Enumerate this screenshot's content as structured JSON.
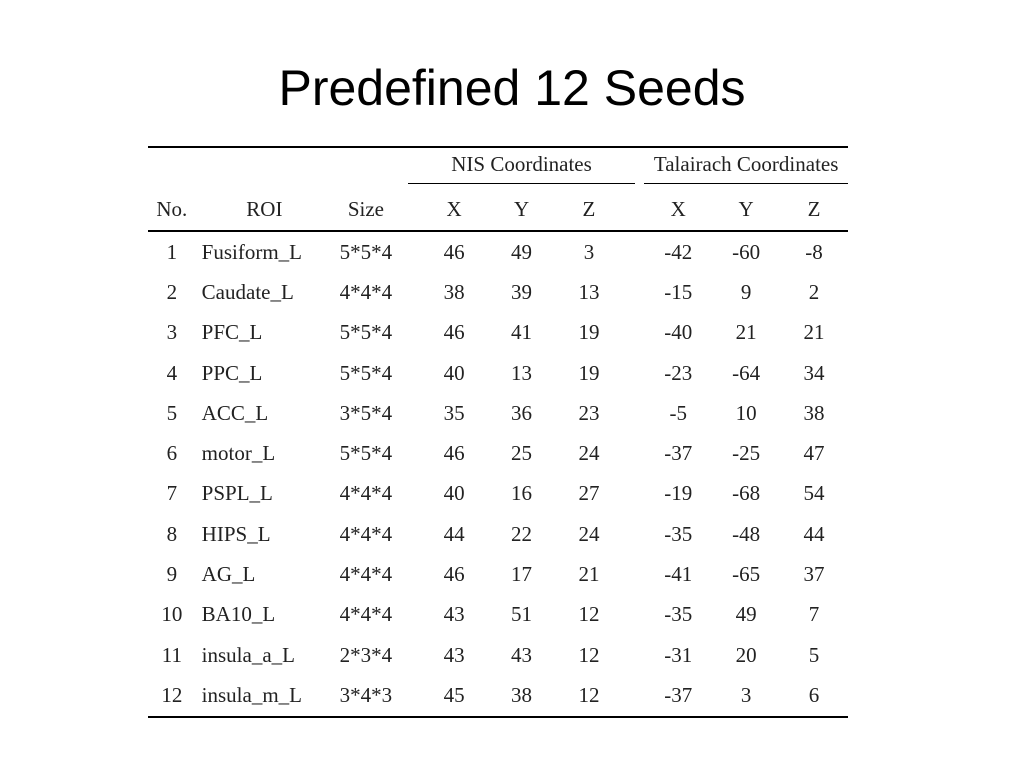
{
  "slide": {
    "title": "Predefined 12 Seeds"
  },
  "table": {
    "group_headers": {
      "nis": "NIS Coordinates",
      "talairach": "Talairach Coordinates"
    },
    "columns": {
      "no": "No.",
      "roi": "ROI",
      "size": "Size",
      "nis_x": "X",
      "nis_y": "Y",
      "nis_z": "Z",
      "tal_x": "X",
      "tal_y": "Y",
      "tal_z": "Z"
    },
    "rows": [
      {
        "no": "1",
        "roi": "Fusiform_L",
        "size": "5*5*4",
        "nis_x": "46",
        "nis_y": "49",
        "nis_z": "3",
        "tal_x": "-42",
        "tal_y": "-60",
        "tal_z": "-8"
      },
      {
        "no": "2",
        "roi": "Caudate_L",
        "size": "4*4*4",
        "nis_x": "38",
        "nis_y": "39",
        "nis_z": "13",
        "tal_x": "-15",
        "tal_y": "9",
        "tal_z": "2"
      },
      {
        "no": "3",
        "roi": "PFC_L",
        "size": "5*5*4",
        "nis_x": "46",
        "nis_y": "41",
        "nis_z": "19",
        "tal_x": "-40",
        "tal_y": "21",
        "tal_z": "21"
      },
      {
        "no": "4",
        "roi": "PPC_L",
        "size": "5*5*4",
        "nis_x": "40",
        "nis_y": "13",
        "nis_z": "19",
        "tal_x": "-23",
        "tal_y": "-64",
        "tal_z": "34"
      },
      {
        "no": "5",
        "roi": "ACC_L",
        "size": "3*5*4",
        "nis_x": "35",
        "nis_y": "36",
        "nis_z": "23",
        "tal_x": "-5",
        "tal_y": "10",
        "tal_z": "38"
      },
      {
        "no": "6",
        "roi": "motor_L",
        "size": "5*5*4",
        "nis_x": "46",
        "nis_y": "25",
        "nis_z": "24",
        "tal_x": "-37",
        "tal_y": "-25",
        "tal_z": "47"
      },
      {
        "no": "7",
        "roi": "PSPL_L",
        "size": "4*4*4",
        "nis_x": "40",
        "nis_y": "16",
        "nis_z": "27",
        "tal_x": "-19",
        "tal_y": "-68",
        "tal_z": "54"
      },
      {
        "no": "8",
        "roi": "HIPS_L",
        "size": "4*4*4",
        "nis_x": "44",
        "nis_y": "22",
        "nis_z": "24",
        "tal_x": "-35",
        "tal_y": "-48",
        "tal_z": "44"
      },
      {
        "no": "9",
        "roi": "AG_L",
        "size": "4*4*4",
        "nis_x": "46",
        "nis_y": "17",
        "nis_z": "21",
        "tal_x": "-41",
        "tal_y": "-65",
        "tal_z": "37"
      },
      {
        "no": "10",
        "roi": "BA10_L",
        "size": "4*4*4",
        "nis_x": "43",
        "nis_y": "51",
        "nis_z": "12",
        "tal_x": "-35",
        "tal_y": "49",
        "tal_z": "7"
      },
      {
        "no": "11",
        "roi": "insula_a_L",
        "size": "2*3*4",
        "nis_x": "43",
        "nis_y": "43",
        "nis_z": "12",
        "tal_x": "-31",
        "tal_y": "20",
        "tal_z": "5"
      },
      {
        "no": "12",
        "roi": "insula_m_L",
        "size": "3*4*3",
        "nis_x": "45",
        "nis_y": "38",
        "nis_z": "12",
        "tal_x": "-37",
        "tal_y": "3",
        "tal_z": "6"
      }
    ]
  }
}
